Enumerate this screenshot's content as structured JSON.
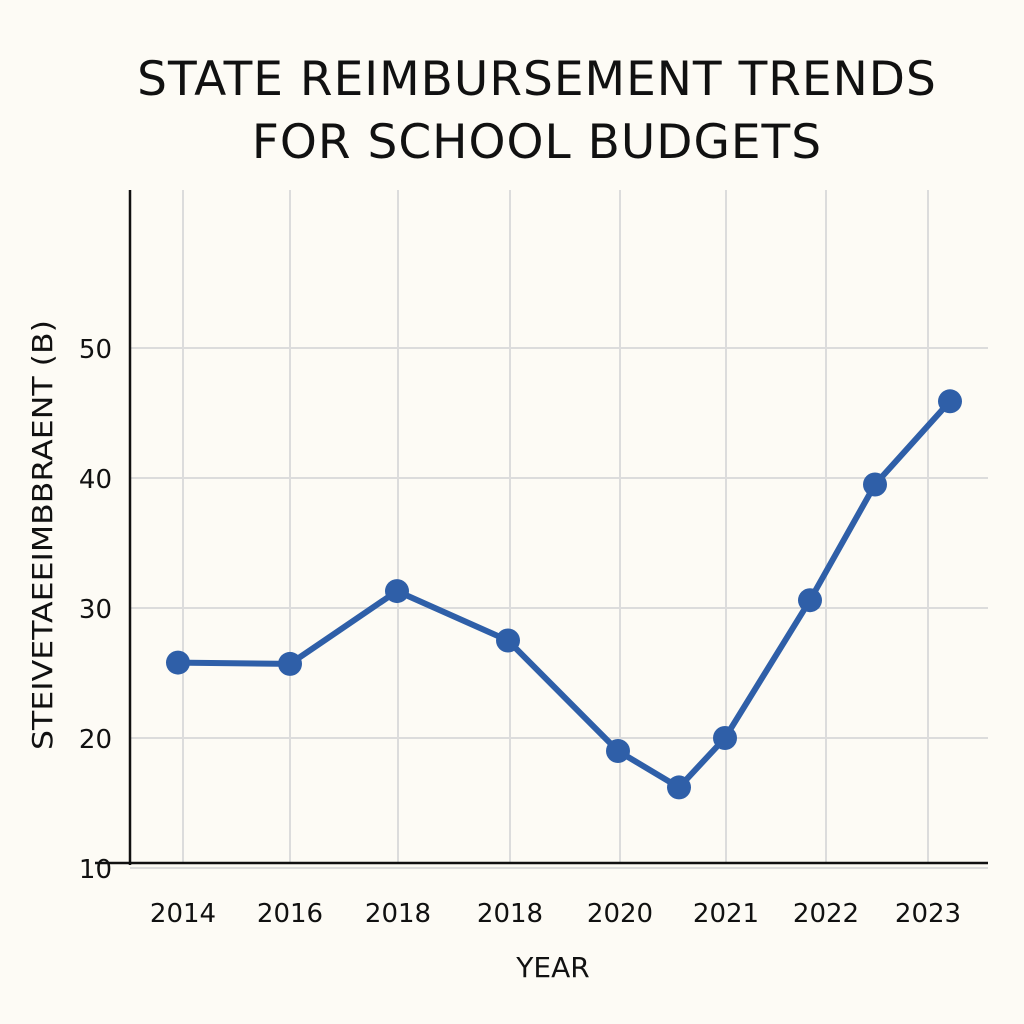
{
  "chart_data": {
    "type": "line",
    "title_lines": [
      "STATE REIMBURSEMENT TRENDS",
      "FOR SCHOOL BUDGETS"
    ],
    "xlabel": "YEAR",
    "ylabel": "STEIVETAEEIMBBRAENT (B)",
    "categories": [
      "2014",
      "2016",
      "2018",
      "2018",
      "2020",
      "2021",
      "2022",
      "2023"
    ],
    "yticks": [
      10,
      20,
      30,
      40,
      50
    ],
    "ylim": [
      0,
      50
    ],
    "grid": true,
    "series": [
      {
        "x": [
          "2014",
          "2016",
          "2018",
          "2018",
          "2020",
          "",
          "2021",
          "2022",
          "",
          "2023"
        ],
        "values": [
          25.8,
          25.7,
          31.3,
          27.5,
          19.0,
          16.2,
          20.0,
          30.6,
          39.5,
          45.9
        ]
      }
    ],
    "colors": {
      "line": "#2f5fa8",
      "grid": "#dcdcdc",
      "axis": "#111111"
    }
  }
}
